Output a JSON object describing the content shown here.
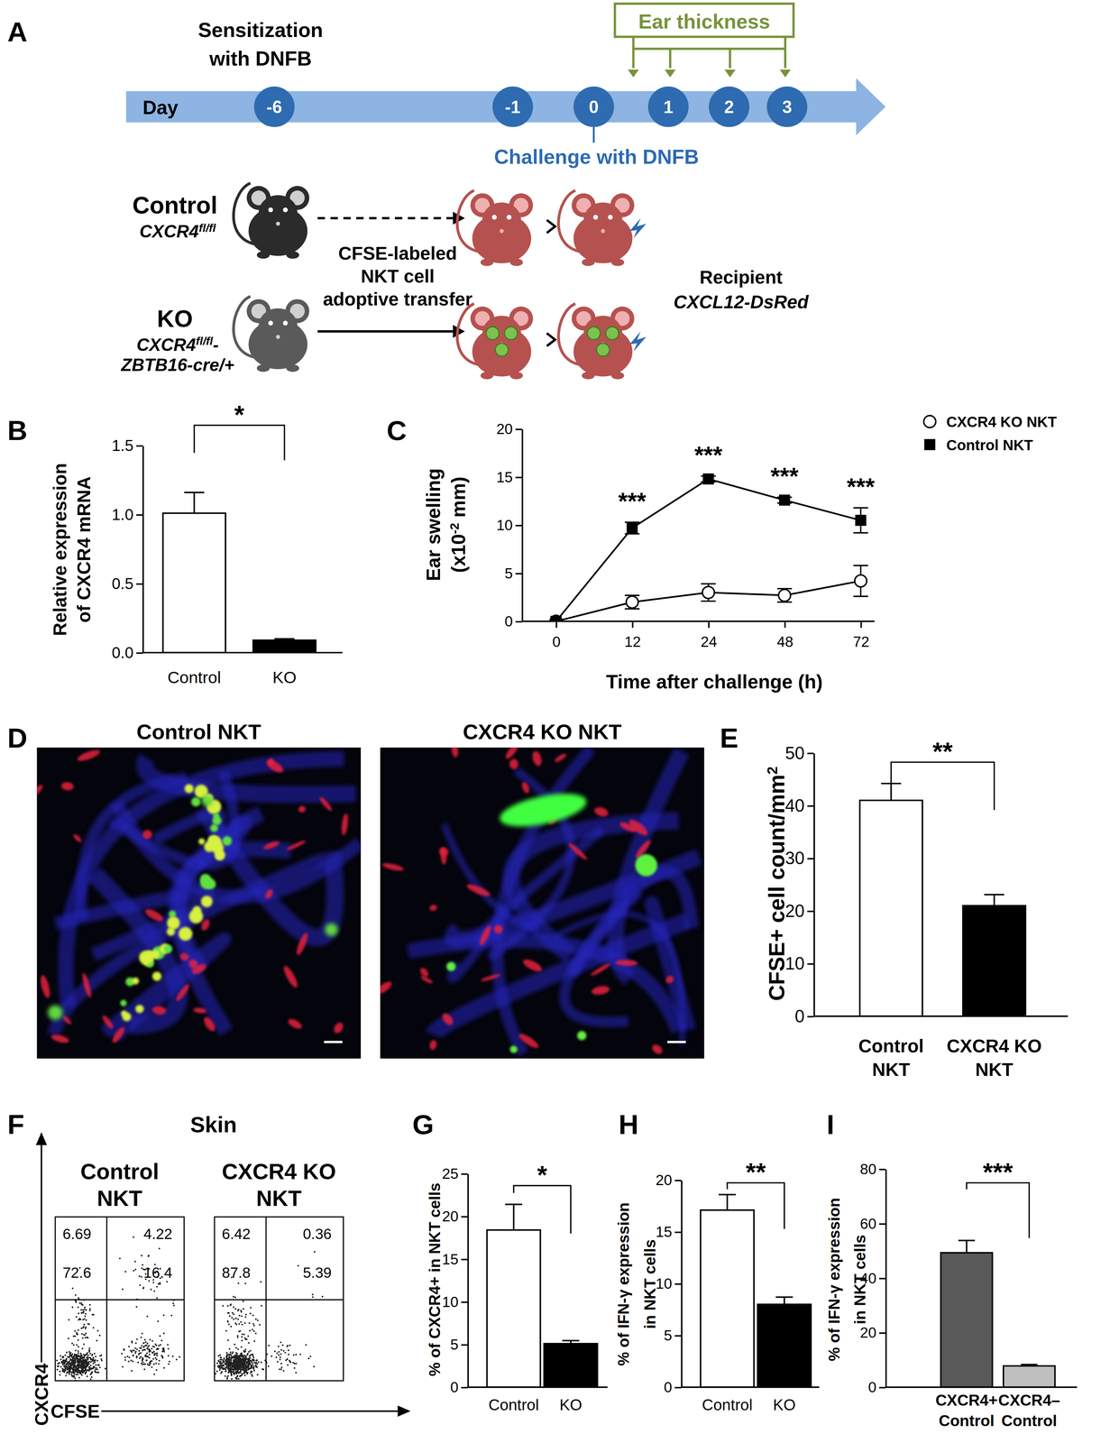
{
  "chart_data": [
    {
      "type": "bar",
      "panel": "B",
      "categories": [
        "Control",
        "KO"
      ],
      "values": [
        1.01,
        0.09
      ],
      "errors": [
        0.15,
        0.01
      ],
      "colors": [
        "#ffffff",
        "#000000"
      ],
      "ylim": [
        0,
        1.5
      ],
      "yticks": [
        {
          "value": 0,
          "label": "0.0"
        },
        0.5,
        {
          "value": 1,
          "label": "1.0"
        },
        1.5
      ],
      "y_label": [
        "Relative expression",
        "of CXCR4 mRNA"
      ],
      "significance": "*"
    },
    {
      "type": "line",
      "panel": "C",
      "categories": [
        "0",
        "12",
        "24",
        "48",
        "72"
      ],
      "series": [
        {
          "name": "CXCR4 KO NKT",
          "color": "#000000",
          "marker": "open-circle",
          "values": [
            0,
            2.0,
            3.0,
            2.7,
            4.2
          ],
          "errors": [
            0,
            0.7,
            0.9,
            0.7,
            1.6
          ]
        },
        {
          "name": "Control NKT",
          "color": "#000000",
          "marker": "square",
          "values": [
            0,
            9.7,
            14.8,
            12.6,
            10.5
          ],
          "errors": [
            0,
            0.6,
            0.3,
            0.3,
            1.3
          ]
        }
      ],
      "ylim": [
        0,
        20
      ],
      "yticks": [
        0,
        5,
        10,
        15,
        20
      ],
      "x_label": "Time after challenge (h)",
      "y_label": [
        "Ear swelling",
        [
          {
            "text": "(x10"
          },
          {
            "text": "-2",
            "sup": true
          },
          {
            "text": " mm)"
          }
        ]
      ],
      "significance": [
        null,
        "***",
        "***",
        "***",
        "***"
      ],
      "legend": "right"
    },
    {
      "type": "bar",
      "panel": "E",
      "categories": [
        "Control\nNKT",
        "CXCR4 KO\nNKT"
      ],
      "values": [
        41,
        21
      ],
      "errors": [
        3.2,
        2.1
      ],
      "colors": [
        "#ffffff",
        "#000000"
      ],
      "ylim": [
        0,
        50
      ],
      "yticks": [
        0,
        10,
        20,
        30,
        40,
        50
      ],
      "y_label": [
        [
          {
            "text": "CFSE+ cell count/mm"
          },
          {
            "text": "2",
            "sup": true
          }
        ]
      ],
      "significance": "**"
    },
    {
      "type": "bar",
      "panel": "G",
      "categories": [
        "Control",
        "KO"
      ],
      "values": [
        18.4,
        5.1
      ],
      "errors": [
        3.0,
        0.35
      ],
      "colors": [
        "#ffffff",
        "#000000"
      ],
      "ylim": [
        0,
        25
      ],
      "yticks": [
        0,
        5,
        10,
        15,
        20,
        25
      ],
      "y_label": [
        "% of CXCR4+ in NKT cells"
      ],
      "significance": "*"
    },
    {
      "type": "bar",
      "panel": "H",
      "categories": [
        "Control",
        "KO"
      ],
      "values": [
        17.1,
        8.0
      ],
      "errors": [
        1.5,
        0.7
      ],
      "colors": [
        "#ffffff",
        "#000000"
      ],
      "ylim": [
        0,
        20
      ],
      "yticks": [
        0,
        5,
        10,
        15,
        20
      ],
      "y_label": [
        "% of IFN-γ expression",
        "in NKT cells"
      ],
      "significance": "**"
    },
    {
      "type": "bar",
      "panel": "I",
      "categories": [
        "CXCR4+\nControl",
        "CXCR4–\nControl"
      ],
      "values": [
        49.3,
        7.8
      ],
      "errors": [
        4.5,
        0.5
      ],
      "colors": [
        "#595959",
        "#bfbfbf"
      ],
      "ylim": [
        0,
        80
      ],
      "yticks": [
        0,
        20,
        40,
        60,
        80
      ],
      "y_label": [
        "% of IFN-γ expression",
        "in NKT cells"
      ],
      "significance": "***"
    }
  ],
  "timeline": {
    "panel": "A",
    "sensitization": [
      "Sensitization",
      "with DNFB"
    ],
    "day_label": "Day",
    "days": [
      -6,
      -1,
      0,
      1,
      2,
      3
    ],
    "measure": "Ear thickness",
    "challenge": "Challenge with DNFB",
    "groups": [
      {
        "name": "Control",
        "genotype": [
          [
            {
              "text": "CXCR4"
            },
            {
              "text": "fl/fl",
              "sup": true
            }
          ]
        ]
      },
      {
        "name": "KO",
        "genotype": [
          [
            {
              "text": "CXCR4"
            },
            {
              "text": "fl/fl",
              "sup": true
            },
            {
              "text": "-"
            }
          ],
          "ZBTB16-cre/+"
        ]
      }
    ],
    "transfer": [
      "CFSE-labeled",
      "NKT cell",
      "adoptive transfer"
    ],
    "recipient": [
      "Recipient",
      "CXCL12-DsRed"
    ]
  },
  "images": {
    "panel": "D",
    "titles": [
      "Control NKT",
      "CXCR4 KO NKT"
    ]
  },
  "flow": {
    "panel": "F",
    "title": "Skin",
    "y_label": "CXCR4",
    "x_label": "CFSE",
    "samples": [
      {
        "name": [
          "Control",
          "NKT"
        ],
        "quadrants": {
          "upper_left": 6.69,
          "upper_right": 4.22,
          "lower_left": 72.6,
          "lower_right": 16.4
        }
      },
      {
        "name": [
          "CXCR4 KO",
          "NKT"
        ],
        "quadrants": {
          "upper_left": 6.42,
          "upper_right": 0.36,
          "lower_left": 87.8,
          "lower_right": 5.39
        }
      }
    ]
  }
}
